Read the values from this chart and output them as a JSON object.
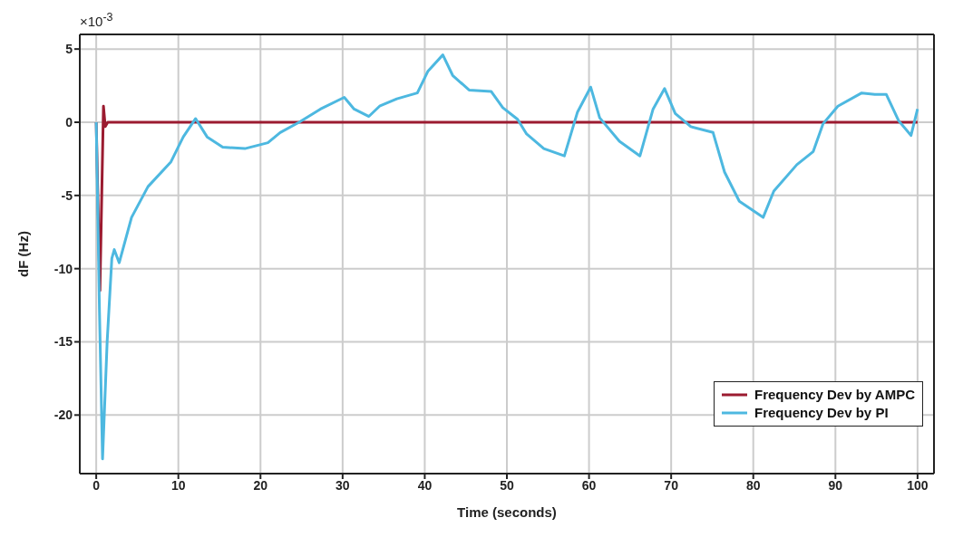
{
  "chart_data": {
    "type": "line",
    "xlabel": "Time (seconds)",
    "ylabel": "dF (Hz)",
    "annotations": [
      "×10$^{-3}$"
    ],
    "xlim": [
      -2,
      102
    ],
    "xticks": [
      0,
      10,
      20,
      30,
      40,
      50,
      60,
      70,
      80,
      90,
      100
    ],
    "ylim": [
      -24,
      6
    ],
    "yticks": [
      -20,
      -15,
      -10,
      -5,
      0,
      5
    ],
    "grid": true,
    "legend": "bottom right",
    "line_style": "solid",
    "marker": "none",
    "series": [
      {
        "name": "Frequency Dev by AMPC",
        "color": "#9b1b30",
        "x": [
          0,
          0.45,
          0.88,
          1.1,
          1.4,
          20,
          40,
          60,
          80,
          100
        ],
        "values": [
          0,
          -11.5,
          1.1,
          -0.3,
          0,
          0,
          0,
          0,
          0,
          0
        ]
      },
      {
        "name": "Frequency Dev by PI",
        "color": "#4db8e0",
        "x": [
          0,
          0.4,
          0.77,
          1.33,
          1.9,
          2.2,
          2.8,
          4.3,
          6.3,
          9.1,
          10.6,
          12.1,
          13.5,
          15.4,
          18.1,
          20.9,
          22.4,
          24.7,
          27.3,
          30.2,
          31.4,
          33.2,
          34.5,
          36.6,
          39.1,
          40.4,
          42.2,
          43.4,
          45.4,
          48.1,
          49.5,
          51.3,
          52.4,
          54.5,
          57.0,
          58.6,
          60.2,
          61.3,
          63.7,
          66.2,
          67.8,
          69.2,
          70.5,
          72.4,
          75.1,
          76.5,
          78.3,
          81.2,
          82.5,
          85.3,
          87.3,
          88.5,
          90.3,
          93.2,
          94.8,
          96.2,
          97.7,
          99.2,
          100
        ],
        "values": [
          0,
          -13,
          -23,
          -15,
          -9.3,
          -8.7,
          -9.6,
          -6.5,
          -4.4,
          -2.7,
          -1.0,
          0.25,
          -1.0,
          -1.7,
          -1.8,
          -1.4,
          -0.7,
          0,
          0.9,
          1.7,
          0.9,
          0.4,
          1.1,
          1.6,
          2.0,
          3.5,
          4.6,
          3.2,
          2.2,
          2.1,
          1.0,
          0.2,
          -0.8,
          -1.8,
          -2.3,
          0.7,
          2.4,
          0.3,
          -1.3,
          -2.3,
          0.9,
          2.3,
          0.6,
          -0.3,
          -0.7,
          -3.4,
          -5.4,
          -6.5,
          -4.7,
          -2.9,
          -2.0,
          -0.1,
          1.1,
          2.0,
          1.9,
          1.9,
          0.1,
          -0.9,
          0.9
        ]
      }
    ]
  }
}
